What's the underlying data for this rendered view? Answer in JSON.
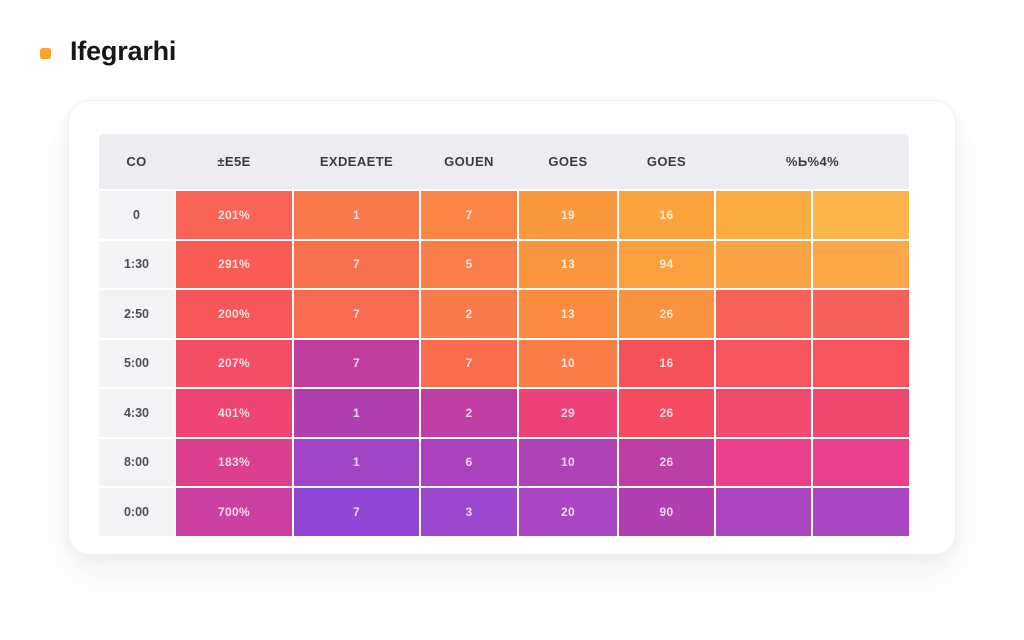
{
  "header": {
    "title": "Ifegrarhi",
    "bullet_color": "#f6a72a"
  },
  "colors": {
    "header_band": "#edecf1",
    "label_column": "#f4f3f6",
    "title_text": "#17171a"
  },
  "chart_data": {
    "type": "heatmap",
    "title": "Ifegrarhi",
    "columns": [
      "CO",
      "±E5E",
      "EXDEAETE",
      "GOUEN",
      "GOES",
      "GOES",
      "%Ь%4%"
    ],
    "row_labels": [
      "0",
      "1:30",
      "2:50",
      "5:00",
      "4:30",
      "8:00",
      "0:00"
    ],
    "legend_position": "none",
    "grid": true,
    "rows": [
      {
        "label": "0",
        "cells": [
          {
            "value": "201%",
            "color": "#fa6457"
          },
          {
            "value": "1",
            "color": "#f9784e"
          },
          {
            "value": "7",
            "color": "#fa8648"
          },
          {
            "value": "19",
            "color": "#f99a40"
          },
          {
            "value": "16",
            "color": "#fba43e"
          },
          {
            "value": "",
            "color": "#fbae42"
          },
          {
            "value": "",
            "color": "#fcb54b"
          }
        ]
      },
      {
        "label": "1:30",
        "cells": [
          {
            "value": "291%",
            "color": "#f85c55"
          },
          {
            "value": "7",
            "color": "#f8714f"
          },
          {
            "value": "5",
            "color": "#fa7f4a"
          },
          {
            "value": "13",
            "color": "#f9953f"
          },
          {
            "value": "94",
            "color": "#faa03f"
          },
          {
            "value": "",
            "color": "#faa345"
          },
          {
            "value": "",
            "color": "#fba74a"
          }
        ]
      },
      {
        "label": "2:50",
        "cells": [
          {
            "value": "200%",
            "color": "#f75659"
          },
          {
            "value": "7",
            "color": "#f86b51"
          },
          {
            "value": "2",
            "color": "#f97a4b"
          },
          {
            "value": "13",
            "color": "#fa8c42"
          },
          {
            "value": "26",
            "color": "#fa9340"
          },
          {
            "value": "",
            "color": "#f6615a"
          },
          {
            "value": "",
            "color": "#f6605c"
          }
        ]
      },
      {
        "label": "5:00",
        "cells": [
          {
            "value": "207%",
            "color": "#f24e66"
          },
          {
            "value": "7",
            "color": "#c23e9e"
          },
          {
            "value": "7",
            "color": "#f96d4d"
          },
          {
            "value": "10",
            "color": "#f97d47"
          },
          {
            "value": "16",
            "color": "#f4525b"
          },
          {
            "value": "",
            "color": "#f5555e"
          },
          {
            "value": "",
            "color": "#f5545f"
          }
        ]
      },
      {
        "label": "4:30",
        "cells": [
          {
            "value": "401%",
            "color": "#ee4573"
          },
          {
            "value": "1",
            "color": "#b040b0"
          },
          {
            "value": "2",
            "color": "#bf3da4"
          },
          {
            "value": "29",
            "color": "#ec4279"
          },
          {
            "value": "26",
            "color": "#f44b61"
          },
          {
            "value": "",
            "color": "#f04a6e"
          },
          {
            "value": "",
            "color": "#ef486f"
          }
        ]
      },
      {
        "label": "8:00",
        "cells": [
          {
            "value": "183%",
            "color": "#db3f8d"
          },
          {
            "value": "1",
            "color": "#a144c6"
          },
          {
            "value": "6",
            "color": "#aa43bd"
          },
          {
            "value": "10",
            "color": "#ae42b7"
          },
          {
            "value": "26",
            "color": "#bc3da4"
          },
          {
            "value": "",
            "color": "#e9418b"
          },
          {
            "value": "",
            "color": "#e8428c"
          }
        ]
      },
      {
        "label": "0:00",
        "cells": [
          {
            "value": "700%",
            "color": "#cb3f9e"
          },
          {
            "value": "7",
            "color": "#9247d7"
          },
          {
            "value": "3",
            "color": "#9b48cf"
          },
          {
            "value": "20",
            "color": "#a846c4"
          },
          {
            "value": "90",
            "color": "#b23fb0"
          },
          {
            "value": "",
            "color": "#ab45c0"
          },
          {
            "value": "",
            "color": "#aa46c1"
          }
        ]
      }
    ]
  }
}
